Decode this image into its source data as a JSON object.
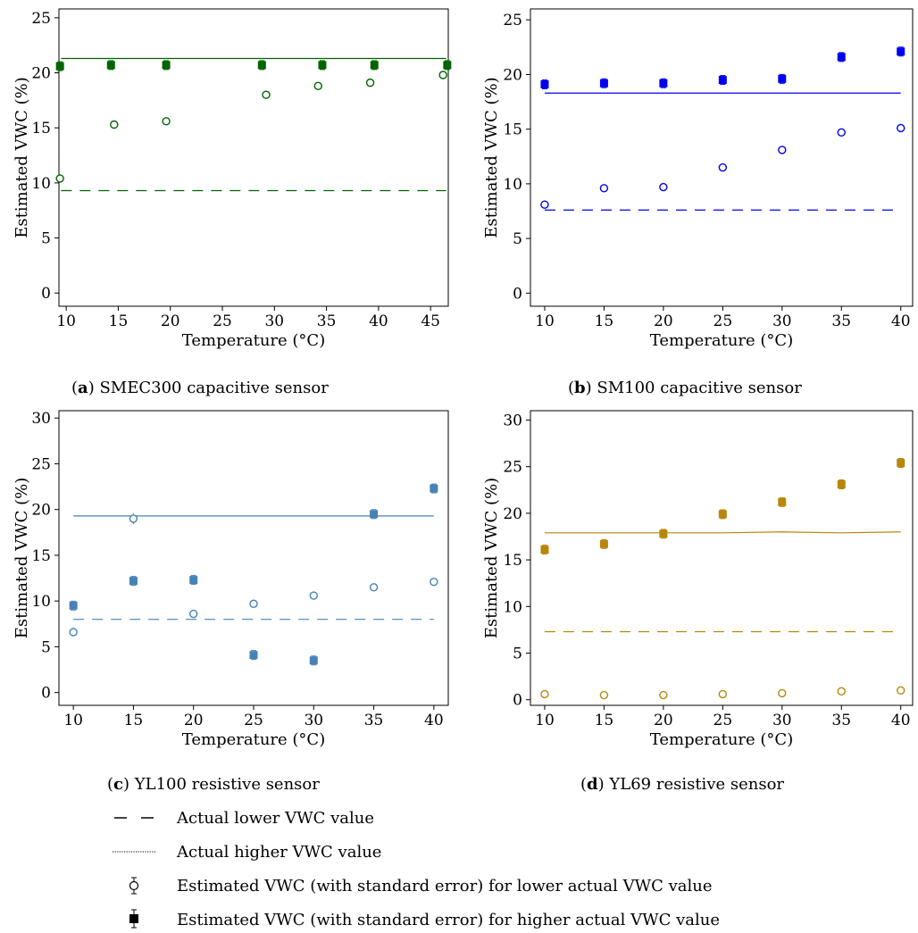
{
  "chart_data": [
    {
      "type": "scatter",
      "id": "a",
      "caption_letter": "a",
      "caption_text": " SMEC300 capacitive sensor",
      "color": "#006400",
      "xlabel": "Temperature (°C)",
      "ylabel": "Estimated VWC (%)",
      "xlim": [
        9.3,
        46.7
      ],
      "ylim": [
        -1.2,
        25.8
      ],
      "xticks": [
        10,
        15,
        20,
        25,
        30,
        35,
        40,
        45
      ],
      "yticks": [
        0,
        5,
        10,
        15,
        20,
        25
      ],
      "low_points": [
        [
          9.4,
          10.4
        ],
        [
          14.6,
          15.3
        ],
        [
          19.6,
          15.6
        ],
        [
          29.2,
          18.0
        ],
        [
          34.2,
          18.8
        ],
        [
          39.2,
          19.1
        ],
        [
          46.2,
          19.8
        ]
      ],
      "high_points": [
        [
          9.4,
          20.6
        ],
        [
          14.3,
          20.7
        ],
        [
          19.6,
          20.7
        ],
        [
          28.8,
          20.7
        ],
        [
          34.6,
          20.7
        ],
        [
          39.6,
          20.7
        ],
        [
          46.6,
          20.7
        ]
      ],
      "actual_low_line": [
        [
          9.5,
          9.3
        ],
        [
          46.5,
          9.3
        ]
      ],
      "actual_high_line": [
        [
          9.5,
          21.3
        ],
        [
          46.5,
          21.3
        ]
      ]
    },
    {
      "type": "scatter",
      "id": "b",
      "caption_letter": "b",
      "caption_text": " SM100 capacitive sensor",
      "color": "#0000ee",
      "xlabel": "Temperature (°C)",
      "ylabel": "Estimated VWC (%)",
      "xlim": [
        8.8,
        41.0
      ],
      "ylim": [
        -1.2,
        26.0
      ],
      "xticks": [
        10,
        15,
        20,
        25,
        30,
        35,
        40
      ],
      "yticks": [
        0,
        5,
        10,
        15,
        20,
        25
      ],
      "low_points": [
        [
          10,
          8.1
        ],
        [
          15,
          9.6
        ],
        [
          20,
          9.7
        ],
        [
          25,
          11.5
        ],
        [
          30,
          13.1
        ],
        [
          35,
          14.7
        ],
        [
          40,
          15.1
        ]
      ],
      "high_points": [
        [
          10,
          19.1
        ],
        [
          15,
          19.2
        ],
        [
          20,
          19.2
        ],
        [
          25,
          19.5
        ],
        [
          30,
          19.6
        ],
        [
          35,
          21.6
        ],
        [
          40,
          22.1
        ]
      ],
      "actual_low_line": [
        [
          10,
          7.6
        ],
        [
          40,
          7.6
        ]
      ],
      "actual_high_line": [
        [
          10,
          18.3
        ],
        [
          40,
          18.3
        ]
      ]
    },
    {
      "type": "scatter",
      "id": "c",
      "caption_letter": "c",
      "caption_text": " YL100 resistive sensor",
      "color": "#4682b4",
      "xlabel": "Temperature (°C)",
      "ylabel": "Estimated VWC (%)",
      "xlim": [
        8.8,
        41.2
      ],
      "ylim": [
        -1.4,
        30.8
      ],
      "xticks": [
        10,
        15,
        20,
        25,
        30,
        35,
        40
      ],
      "yticks": [
        0,
        5,
        10,
        15,
        20,
        25,
        30
      ],
      "low_points": [
        [
          10,
          6.6
        ],
        [
          15,
          19.0
        ],
        [
          20,
          8.6
        ],
        [
          25,
          9.7
        ],
        [
          30,
          10.6
        ],
        [
          35,
          11.5
        ],
        [
          40,
          12.1
        ]
      ],
      "low_errors": [
        0.2,
        0.6,
        0.2,
        0.2,
        0.2,
        0.2,
        0.2
      ],
      "high_points": [
        [
          10,
          9.5
        ],
        [
          15,
          12.2
        ],
        [
          20,
          12.3
        ],
        [
          25,
          4.1
        ],
        [
          30,
          3.5
        ],
        [
          35,
          19.5
        ],
        [
          40,
          22.3
        ]
      ],
      "actual_low_line": [
        [
          10,
          8.0
        ],
        [
          40,
          8.0
        ]
      ],
      "actual_high_line": [
        [
          10,
          19.3
        ],
        [
          40,
          19.3
        ]
      ]
    },
    {
      "type": "scatter",
      "id": "d",
      "caption_letter": "d",
      "caption_text": " YL69 resistive sensor",
      "color": "#b8860b",
      "xlabel": "Temperature (°C)",
      "ylabel": "Estimated VWC (%)",
      "xlim": [
        8.8,
        41.0
      ],
      "ylim": [
        -0.6,
        31.0
      ],
      "xticks": [
        10,
        15,
        20,
        25,
        30,
        35,
        40
      ],
      "yticks": [
        0,
        5,
        10,
        15,
        20,
        25,
        30
      ],
      "low_points": [
        [
          10,
          0.6
        ],
        [
          15,
          0.5
        ],
        [
          20,
          0.5
        ],
        [
          25,
          0.6
        ],
        [
          30,
          0.7
        ],
        [
          35,
          0.9
        ],
        [
          40,
          1.0
        ]
      ],
      "high_points": [
        [
          10,
          16.1
        ],
        [
          15,
          16.7
        ],
        [
          20,
          17.8
        ],
        [
          25,
          19.9
        ],
        [
          30,
          21.2
        ],
        [
          35,
          23.1
        ],
        [
          40,
          25.4
        ]
      ],
      "actual_low_line": [
        [
          10,
          7.3
        ],
        [
          40,
          7.3
        ]
      ],
      "actual_high_line": [
        [
          10,
          17.9
        ],
        [
          15,
          17.9
        ],
        [
          20,
          17.9
        ],
        [
          25,
          17.9
        ],
        [
          30,
          18.0
        ],
        [
          35,
          17.9
        ],
        [
          40,
          18.0
        ]
      ]
    }
  ],
  "legend": {
    "items": [
      {
        "symbol": "dashed-line",
        "label": "Actual lower VWC value"
      },
      {
        "symbol": "dotted-line",
        "label": "Actual higher VWC value"
      },
      {
        "symbol": "open-circle-errorbar",
        "label": "Estimated VWC (with standard error) for lower actual VWC value"
      },
      {
        "symbol": "filled-square-errorbar",
        "label": "Estimated VWC (with standard error) for higher actual VWC value"
      }
    ]
  }
}
